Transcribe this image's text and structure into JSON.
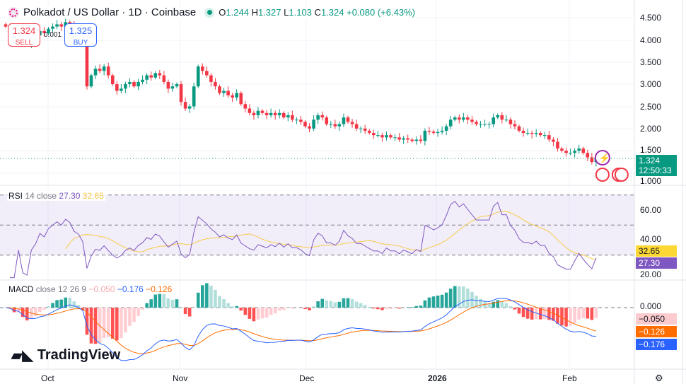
{
  "header": {
    "symbol": "Polkadot / US Dollar · 1D · Coinbase",
    "open_label": "O",
    "open": "1.244",
    "high_label": "H",
    "high": "1.327",
    "low_label": "L",
    "low": "1.103",
    "close_label": "C",
    "close": "1.324",
    "change": "+0.080 (+6.43%)"
  },
  "trade": {
    "sell_price": "1.324",
    "sell_label": "SELL",
    "buy_price": "1.325",
    "buy_label": "BUY",
    "spread": "0.001"
  },
  "price_axis": [
    "4.500",
    "4.000",
    "3.500",
    "3.000",
    "2.500",
    "2.000",
    "1.500",
    "1.000"
  ],
  "last_price": {
    "price": "1.324",
    "countdown": "12:50:33"
  },
  "rsi": {
    "label": "RSI",
    "params": "14 close",
    "value": "27.30",
    "ma": "32.65",
    "axis": [
      "60.00",
      "40.00",
      "20.00"
    ]
  },
  "macd": {
    "label": "MACD",
    "params": "close 12 26 9",
    "hist": "−0.050",
    "macd": "−0.176",
    "signal": "−0.126",
    "axis": "0.000"
  },
  "time_axis": [
    "Oct",
    "Nov",
    "Dec",
    "2026",
    "Feb"
  ],
  "brand": "TradingView",
  "colors": {
    "up": "#089981",
    "down": "#f23645",
    "rsi": "#7e57c2",
    "rsi_ma": "#f7c948",
    "macd": "#2962ff",
    "signal": "#ff6d00"
  },
  "chart_data": {
    "type": "candlestick",
    "start": "2025-09-21",
    "interval": "1D",
    "closes": [
      4.3,
      4.25,
      4.1,
      4.2,
      3.95,
      3.9,
      4.05,
      4.1,
      4.2,
      4.15,
      4.25,
      4.3,
      4.35,
      4.3,
      4.4,
      4.35,
      4.2,
      4.15,
      4.0,
      2.95,
      3.2,
      3.35,
      3.3,
      3.4,
      3.2,
      3.0,
      2.85,
      2.9,
      3.0,
      3.05,
      2.95,
      3.05,
      3.1,
      3.2,
      3.15,
      3.25,
      3.2,
      3.05,
      2.9,
      2.95,
      3.0,
      2.6,
      2.45,
      2.5,
      2.95,
      3.4,
      3.3,
      3.2,
      3.05,
      2.95,
      2.8,
      2.85,
      2.75,
      2.7,
      2.8,
      2.55,
      2.45,
      2.35,
      2.3,
      2.4,
      2.35,
      2.3,
      2.35,
      2.3,
      2.35,
      2.25,
      2.3,
      2.2,
      2.2,
      2.15,
      2.05,
      2.0,
      2.2,
      2.3,
      2.25,
      2.1,
      2.1,
      2.05,
      2.1,
      2.25,
      2.15,
      2.1,
      2.0,
      2.0,
      1.95,
      1.9,
      1.85,
      1.85,
      1.8,
      1.85,
      1.8,
      1.8,
      1.75,
      1.78,
      1.75,
      1.72,
      1.75,
      1.72,
      1.95,
      1.93,
      1.9,
      1.92,
      1.95,
      2.05,
      2.2,
      2.25,
      2.2,
      2.25,
      2.2,
      2.15,
      2.1,
      2.1,
      2.1,
      2.1,
      2.25,
      2.3,
      2.2,
      2.2,
      2.1,
      2.05,
      1.95,
      1.9,
      1.9,
      1.88,
      1.9,
      1.85,
      1.85,
      1.75,
      1.7,
      1.55,
      1.5,
      1.45,
      1.45,
      1.5,
      1.55,
      1.45,
      1.35,
      1.244,
      1.324
    ],
    "price_range": [
      1.0,
      4.5
    ],
    "rsi_range": [
      20,
      70
    ]
  }
}
